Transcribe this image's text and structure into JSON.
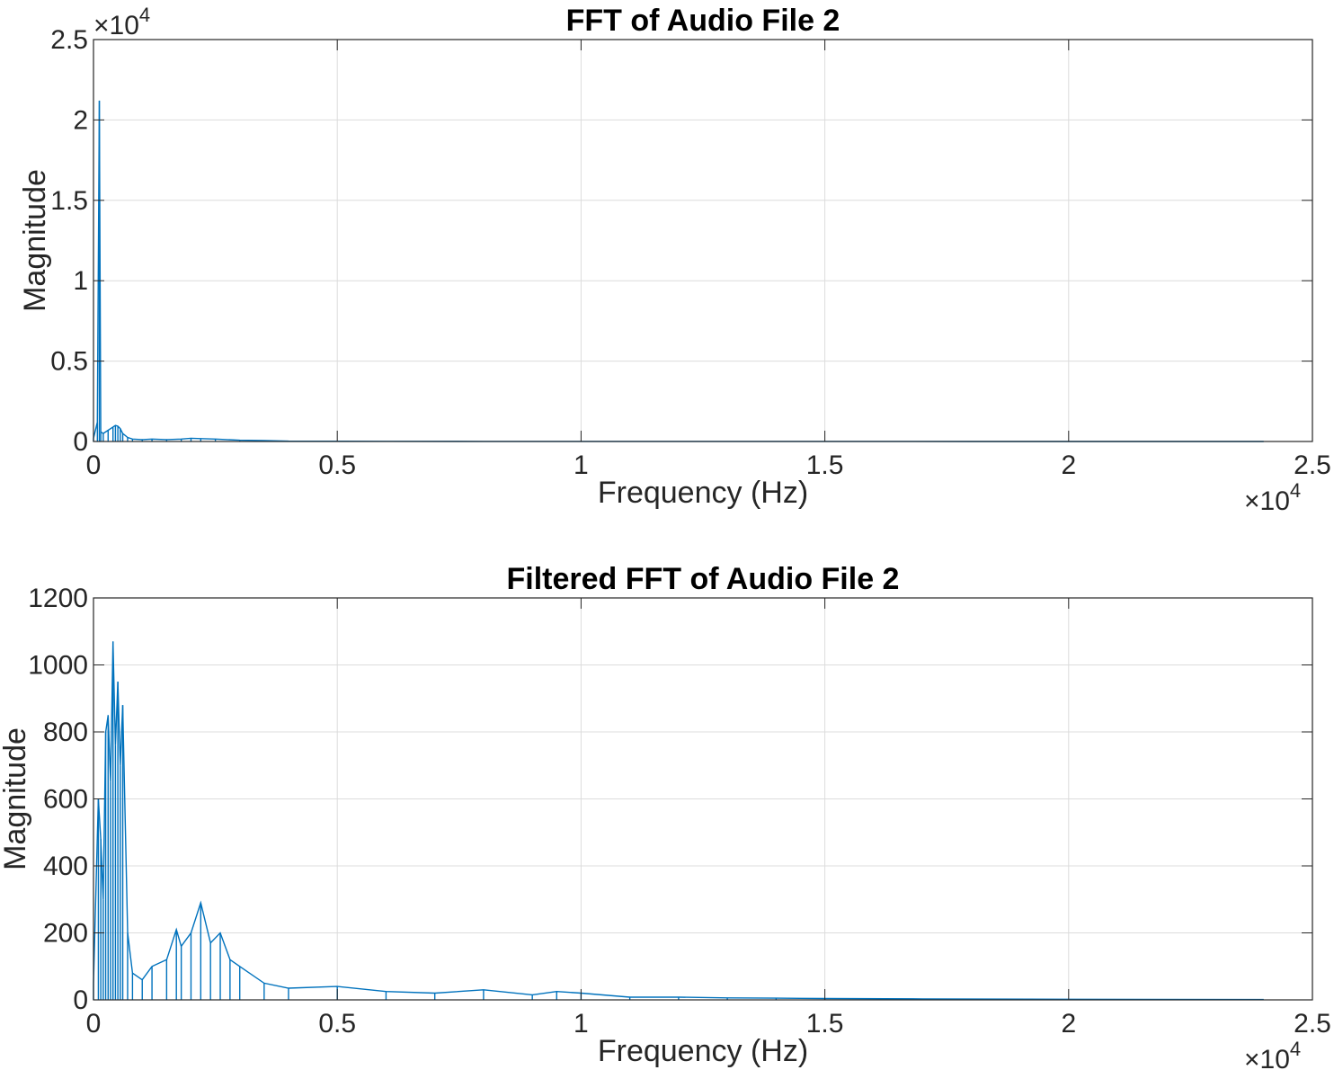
{
  "figure": {
    "background": "#ffffff",
    "line_color": "#0072BD",
    "grid_color": "#dcdcdc",
    "axis_color": "#262626"
  },
  "chart_data": [
    {
      "type": "line",
      "title": "FFT of Audio File 2",
      "xlabel": "Frequency (Hz)",
      "ylabel": "Magnitude",
      "xlim": [
        0,
        25000
      ],
      "ylim": [
        0,
        25000
      ],
      "x_ticks": [
        0,
        5000,
        10000,
        15000,
        20000,
        25000
      ],
      "x_tick_labels": [
        "0",
        "0.5",
        "1",
        "1.5",
        "2",
        "2.5"
      ],
      "y_ticks": [
        0,
        5000,
        10000,
        15000,
        20000,
        25000
      ],
      "y_tick_labels": [
        "0",
        "0.5",
        "1",
        "1.5",
        "2",
        "2.5"
      ],
      "x_exponent": {
        "base": "×10",
        "power": "4"
      },
      "y_exponent": {
        "base": "×10",
        "power": "4"
      },
      "grid": true,
      "series": [
        {
          "x": [
            0,
            80,
            120,
            150,
            200,
            300,
            400,
            450,
            500,
            550,
            600,
            700,
            800,
            1000,
            1200,
            1500,
            1800,
            2000,
            2200,
            2500,
            3000,
            3500,
            4000,
            5000,
            6000,
            8000,
            10000,
            12000,
            15000,
            18000,
            20000,
            22000,
            24000
          ],
          "y": [
            200,
            1200,
            21200,
            600,
            500,
            700,
            900,
            1000,
            950,
            800,
            500,
            250,
            150,
            120,
            150,
            120,
            150,
            200,
            180,
            150,
            80,
            60,
            25,
            15,
            10,
            8,
            5,
            4,
            3,
            2,
            2,
            1,
            1
          ]
        }
      ]
    },
    {
      "type": "line",
      "title": "Filtered FFT of Audio File 2",
      "xlabel": "Frequency (Hz)",
      "ylabel": "Magnitude",
      "xlim": [
        0,
        25000
      ],
      "ylim": [
        0,
        1200
      ],
      "x_ticks": [
        0,
        5000,
        10000,
        15000,
        20000,
        25000
      ],
      "x_tick_labels": [
        "0",
        "0.5",
        "1",
        "1.5",
        "2",
        "2.5"
      ],
      "y_ticks": [
        0,
        200,
        400,
        600,
        800,
        1000,
        1200
      ],
      "y_tick_labels": [
        "0",
        "200",
        "400",
        "600",
        "800",
        "1000",
        "1200"
      ],
      "x_exponent": {
        "base": "×10",
        "power": "4"
      },
      "grid": true,
      "series": [
        {
          "x": [
            0,
            100,
            150,
            200,
            250,
            300,
            350,
            400,
            450,
            500,
            550,
            600,
            700,
            800,
            1000,
            1200,
            1500,
            1700,
            1800,
            2000,
            2200,
            2400,
            2600,
            2800,
            3000,
            3500,
            4000,
            5000,
            6000,
            7000,
            8000,
            9000,
            9500,
            10000,
            11000,
            12000,
            13000,
            14000,
            15000,
            17000,
            20000,
            24000
          ],
          "y": [
            50,
            600,
            480,
            300,
            800,
            850,
            650,
            1070,
            760,
            950,
            700,
            880,
            200,
            80,
            60,
            100,
            120,
            210,
            160,
            200,
            290,
            170,
            200,
            120,
            100,
            50,
            35,
            40,
            25,
            20,
            30,
            15,
            25,
            20,
            8,
            8,
            6,
            5,
            4,
            3,
            2,
            1
          ]
        }
      ]
    }
  ]
}
